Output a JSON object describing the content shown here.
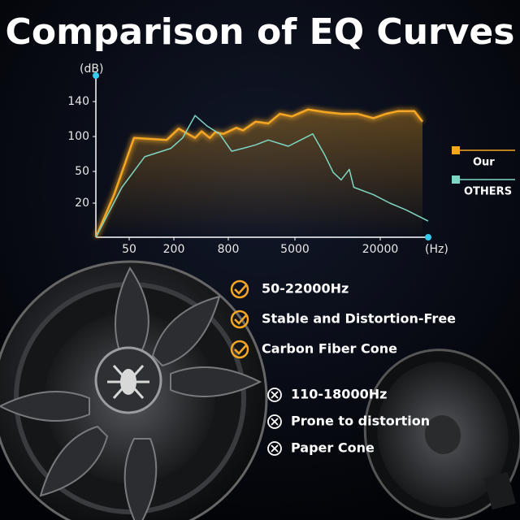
{
  "chart_data": {
    "type": "line",
    "title": "Comparison of EQ Curves",
    "y_label": "(dB)",
    "x_label": "(Hz)",
    "xlim": [
      20,
      30000
    ],
    "ylim": [
      0,
      170
    ],
    "xticks": [
      50,
      200,
      800,
      5000,
      20000
    ],
    "yticks": [
      20,
      50,
      100,
      140
    ],
    "legend": "right",
    "series": [
      {
        "name": "Our",
        "color": "#f5a623",
        "x": [
          20,
          33,
          58,
          160,
          226,
          343,
          405,
          500,
          573,
          706,
          1000,
          1200,
          1700,
          2400,
          3300,
          4600,
          6200,
          8100,
          10600,
          13800,
          17900,
          21000,
          23200,
          26700,
          28600
        ],
        "values": [
          0,
          28,
          98,
          95,
          109,
          98,
          106,
          98,
          105,
          103,
          110,
          107,
          117,
          115,
          126,
          123,
          131,
          128,
          126,
          126,
          121,
          126,
          129,
          129,
          117
        ]
      },
      {
        "name": "OTHERS",
        "color": "#7fd6c2",
        "x": [
          20,
          41,
          81,
          182,
          250,
          343,
          466,
          641,
          877,
          1200,
          1700,
          2400,
          4160,
          6680,
          8100,
          9330,
          10600,
          12100,
          13000,
          17900,
          21700,
          24900,
          30000
        ],
        "values": [
          0,
          35,
          71,
          83,
          98,
          124,
          112,
          103,
          79,
          83,
          88,
          95,
          86,
          103,
          74,
          49,
          42,
          53,
          35,
          28,
          20,
          16,
          9.5
        ]
      }
    ]
  },
  "features": {
    "ours": [
      "50-22000Hz",
      "Stable and Distortion-Free",
      "Carbon Fiber Cone"
    ],
    "others": [
      "110-18000Hz",
      "Prone to distortion",
      "Paper Cone"
    ]
  }
}
